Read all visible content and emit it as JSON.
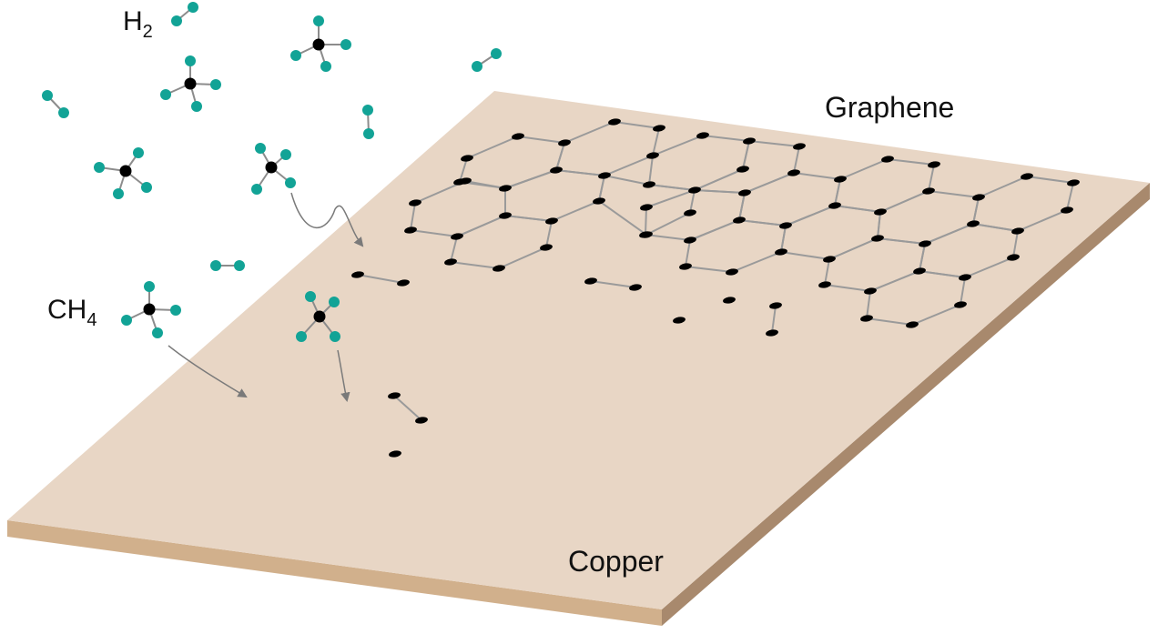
{
  "labels": {
    "h2_main": "H",
    "h2_sub": "2",
    "ch4_main": "CH",
    "ch4_sub": "4",
    "graphene": "Graphene",
    "copper": "Copper"
  },
  "colors": {
    "hydrogen": "#12a396",
    "carbon": "#000000",
    "bond": "#8c8c8c",
    "copper_top": "#e8d6c5",
    "copper_front": "#d1b08c",
    "copper_side": "#a8896d",
    "lattice": "#9a9a9a",
    "arrow": "#7a7a7a"
  }
}
